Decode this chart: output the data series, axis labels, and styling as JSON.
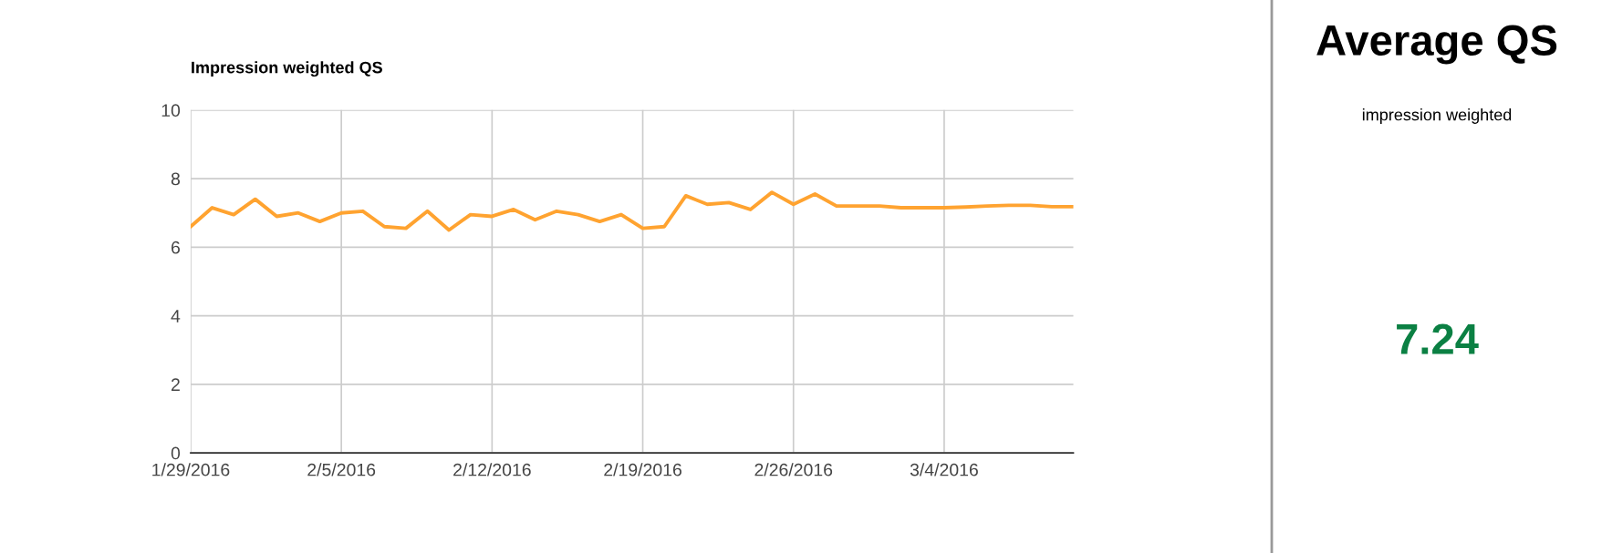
{
  "chart_data": [
    {
      "type": "line",
      "title": "Impression weighted QS",
      "x": [
        "2016-01-29",
        "2016-01-30",
        "2016-01-31",
        "2016-02-01",
        "2016-02-02",
        "2016-02-03",
        "2016-02-04",
        "2016-02-05",
        "2016-02-06",
        "2016-02-07",
        "2016-02-08",
        "2016-02-09",
        "2016-02-10",
        "2016-02-11",
        "2016-02-12",
        "2016-02-13",
        "2016-02-14",
        "2016-02-15",
        "2016-02-16",
        "2016-02-17",
        "2016-02-18",
        "2016-02-19",
        "2016-02-20",
        "2016-02-21",
        "2016-02-22",
        "2016-02-23",
        "2016-02-24",
        "2016-02-25",
        "2016-02-26",
        "2016-02-27",
        "2016-02-28",
        "2016-02-29",
        "2016-03-01",
        "2016-03-02",
        "2016-03-03",
        "2016-03-04",
        "2016-03-05",
        "2016-03-06",
        "2016-03-07",
        "2016-03-08",
        "2016-03-09",
        "2016-03-10"
      ],
      "series": [
        {
          "color": "#ffa330",
          "values": [
            6.6,
            7.15,
            6.95,
            7.4,
            6.9,
            7.0,
            6.75,
            7.0,
            7.05,
            6.6,
            6.55,
            7.05,
            6.5,
            6.95,
            6.9,
            7.1,
            6.8,
            7.05,
            6.95,
            6.75,
            6.95,
            6.55,
            6.6,
            7.5,
            7.25,
            7.3,
            7.1,
            7.6,
            7.25,
            7.55,
            7.2,
            7.2,
            7.2,
            7.15,
            7.15,
            7.15,
            7.17,
            7.2,
            7.22,
            7.22,
            7.18,
            7.18
          ]
        }
      ],
      "xlim": [
        "2016-01-29",
        "2016-03-10"
      ],
      "xticks": [
        {
          "value": "2016-01-29",
          "label": "1/29/2016"
        },
        {
          "value": "2016-02-05",
          "label": "2/5/2016"
        },
        {
          "value": "2016-02-12",
          "label": "2/12/2016"
        },
        {
          "value": "2016-02-19",
          "label": "2/19/2016"
        },
        {
          "value": "2016-02-26",
          "label": "2/26/2016"
        },
        {
          "value": "2016-03-04",
          "label": "3/4/2016"
        }
      ],
      "ylim": [
        0,
        10
      ],
      "yticks": [
        0,
        2,
        4,
        6,
        8,
        10
      ],
      "grid": true
    },
    {
      "type": "other",
      "title": "Average QS",
      "subtitle": "impression weighted",
      "annotations": [
        "7.24"
      ],
      "color": "#0b8043"
    }
  ]
}
